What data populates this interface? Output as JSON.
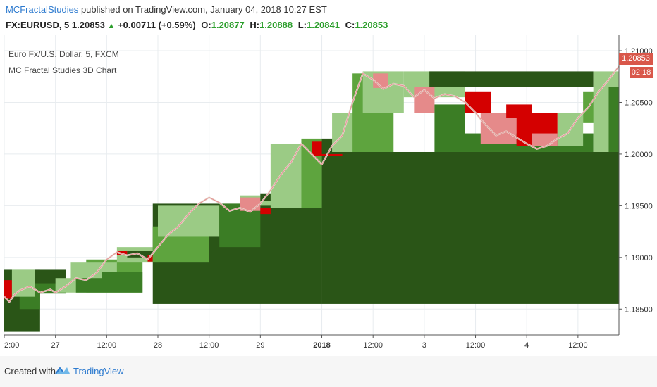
{
  "header": {
    "author": "MCFractalStudies",
    "published": "published on TradingView.com, January 04, 2018 10:27 EST"
  },
  "ohlc": {
    "symbol": "FX:EURUSD, 5",
    "last": "1.20853",
    "change": "+0.00711 (+0.59%)",
    "o_label": "O:",
    "o": "1.20877",
    "h_label": "H:",
    "h": "1.20888",
    "l_label": "L:",
    "l": "1.20841",
    "c_label": "C:",
    "c": "1.20853"
  },
  "legend": {
    "line1": "Euro Fx/U.S. Dollar, 5, FXCM",
    "line2": "MC Fractal Studies 3D Chart"
  },
  "price_tags": {
    "last_price": "1.20853",
    "countdown": "02:18"
  },
  "footer": {
    "created_with": "Created with",
    "brand": "TradingView"
  },
  "colors": {
    "dark_green": "#2a5517",
    "mid_green": "#3b7d25",
    "green": "#5ea43e",
    "light_green": "#9bcb85",
    "red": "#d40000",
    "pink": "#e58a8a",
    "price_tag": "#d9574a",
    "grid": "#e8ecef"
  },
  "chart_data": {
    "type": "line",
    "title": "MC Fractal Studies 3D Chart",
    "ylim": [
      1.1825,
      1.2115
    ],
    "y_ticks": [
      "1.18500",
      "1.19000",
      "1.19500",
      "1.20000",
      "1.20500",
      "1.21000"
    ],
    "x_ticks": [
      "2:00",
      "27",
      "12:00",
      "28",
      "12:00",
      "29",
      "2018",
      "12:00",
      "3",
      "12:00",
      "4",
      "12:00"
    ],
    "x_tick_positions": [
      0,
      1,
      2,
      3,
      4,
      5,
      6.2,
      7.2,
      8.2,
      9.2,
      10.2,
      11.2
    ],
    "series": [
      {
        "name": "EURUSD",
        "x": [
          0,
          0.1,
          0.2,
          0.3,
          0.5,
          0.7,
          0.9,
          1.0,
          1.2,
          1.4,
          1.6,
          1.8,
          2.0,
          2.2,
          2.4,
          2.6,
          2.8,
          3.0,
          3.2,
          3.4,
          3.6,
          3.8,
          4.0,
          4.2,
          4.4,
          4.6,
          4.8,
          5.0,
          5.2,
          5.4,
          5.6,
          5.8,
          6.0,
          6.2,
          6.4,
          6.6,
          6.8,
          7.0,
          7.2,
          7.4,
          7.6,
          7.8,
          8.0,
          8.2,
          8.4,
          8.6,
          8.8,
          9.0,
          9.2,
          9.4,
          9.6,
          9.8,
          10.0,
          10.2,
          10.4,
          10.6,
          10.8,
          11.0,
          11.2,
          11.4,
          11.6,
          11.8,
          12.0
        ],
        "values": [
          1.1862,
          1.1857,
          1.1864,
          1.1868,
          1.1872,
          1.1866,
          1.1869,
          1.1866,
          1.1872,
          1.188,
          1.1878,
          1.1885,
          1.1898,
          1.1905,
          1.1902,
          1.1904,
          1.1898,
          1.191,
          1.1922,
          1.193,
          1.1942,
          1.1952,
          1.1958,
          1.1953,
          1.1945,
          1.1948,
          1.1944,
          1.1952,
          1.1965,
          1.198,
          1.1992,
          1.201,
          1.2,
          1.199,
          1.2008,
          1.2018,
          1.205,
          1.2078,
          1.2072,
          1.2063,
          1.2068,
          1.2066,
          1.2055,
          1.2062,
          1.2054,
          1.2058,
          1.2056,
          1.205,
          1.204,
          1.2028,
          1.2018,
          1.2022,
          1.2016,
          1.201,
          1.2005,
          1.2008,
          1.2015,
          1.202,
          1.2035,
          1.2045,
          1.206,
          1.2072,
          1.2085
        ]
      }
    ],
    "blocks": [
      {
        "x0": 0.0,
        "x1": 0.7,
        "top": 1.1888,
        "bottom": 1.1828,
        "shade": "dark_green"
      },
      {
        "x0": 0.3,
        "x1": 0.7,
        "top": 1.1885,
        "bottom": 1.185,
        "shade": "mid_green"
      },
      {
        "x0": 0.0,
        "x1": 0.15,
        "top": 1.1878,
        "bottom": 1.186,
        "shade": "red"
      },
      {
        "x0": 0.15,
        "x1": 0.6,
        "top": 1.1888,
        "bottom": 1.1862,
        "shade": "light_green"
      },
      {
        "x0": 0.6,
        "x1": 1.2,
        "top": 1.1888,
        "bottom": 1.187,
        "shade": "dark_green"
      },
      {
        "x0": 0.6,
        "x1": 1.2,
        "top": 1.1875,
        "bottom": 1.1865,
        "shade": "mid_green"
      },
      {
        "x0": 1.0,
        "x1": 1.6,
        "top": 1.188,
        "bottom": 1.1866,
        "shade": "light_green"
      },
      {
        "x0": 1.6,
        "x1": 2.7,
        "top": 1.1898,
        "bottom": 1.1866,
        "shade": "green"
      },
      {
        "x0": 1.3,
        "x1": 2.2,
        "top": 1.1895,
        "bottom": 1.1875,
        "shade": "light_green"
      },
      {
        "x0": 2.2,
        "x1": 2.9,
        "top": 1.191,
        "bottom": 1.1895,
        "shade": "light_green"
      },
      {
        "x0": 1.4,
        "x1": 1.9,
        "top": 1.188,
        "bottom": 1.1866,
        "shade": "mid_green"
      },
      {
        "x0": 1.9,
        "x1": 2.7,
        "top": 1.1886,
        "bottom": 1.1866,
        "shade": "mid_green"
      },
      {
        "x0": 2.2,
        "x1": 2.4,
        "top": 1.1906,
        "bottom": 1.1902,
        "shade": "red"
      },
      {
        "x0": 2.4,
        "x1": 2.9,
        "top": 1.1906,
        "bottom": 1.19,
        "shade": "dark_green"
      },
      {
        "x0": 2.8,
        "x1": 2.9,
        "top": 1.1902,
        "bottom": 1.1896,
        "shade": "red"
      },
      {
        "x0": 2.9,
        "x1": 6.2,
        "top": 1.1952,
        "bottom": 1.1855,
        "shade": "dark_green"
      },
      {
        "x0": 6.2,
        "x1": 12.0,
        "top": 1.2002,
        "bottom": 1.1855,
        "shade": "dark_green"
      },
      {
        "x0": 2.9,
        "x1": 4.0,
        "top": 1.193,
        "bottom": 1.1895,
        "shade": "green"
      },
      {
        "x0": 3.0,
        "x1": 4.2,
        "top": 1.195,
        "bottom": 1.192,
        "shade": "light_green"
      },
      {
        "x0": 4.2,
        "x1": 5.0,
        "top": 1.1952,
        "bottom": 1.191,
        "shade": "mid_green"
      },
      {
        "x0": 4.6,
        "x1": 5.5,
        "top": 1.196,
        "bottom": 1.195,
        "shade": "light_green"
      },
      {
        "x0": 4.6,
        "x1": 5.0,
        "top": 1.1958,
        "bottom": 1.1945,
        "shade": "pink"
      },
      {
        "x0": 5.0,
        "x1": 5.2,
        "top": 1.1948,
        "bottom": 1.1942,
        "shade": "red"
      },
      {
        "x0": 5.0,
        "x1": 5.8,
        "top": 1.1962,
        "bottom": 1.1955,
        "shade": "dark_green"
      },
      {
        "x0": 5.2,
        "x1": 6.0,
        "top": 1.201,
        "bottom": 1.1948,
        "shade": "light_green"
      },
      {
        "x0": 5.8,
        "x1": 6.2,
        "top": 1.2015,
        "bottom": 1.1948,
        "shade": "green"
      },
      {
        "x0": 6.0,
        "x1": 6.6,
        "top": 1.2012,
        "bottom": 1.1998,
        "shade": "red"
      },
      {
        "x0": 6.2,
        "x1": 6.8,
        "top": 1.2015,
        "bottom": 1.2,
        "shade": "dark_green"
      },
      {
        "x0": 6.4,
        "x1": 7.0,
        "top": 1.204,
        "bottom": 1.2002,
        "shade": "light_green"
      },
      {
        "x0": 6.8,
        "x1": 7.6,
        "top": 1.2078,
        "bottom": 1.2002,
        "shade": "green"
      },
      {
        "x0": 7.0,
        "x1": 7.8,
        "top": 1.208,
        "bottom": 1.204,
        "shade": "light_green"
      },
      {
        "x0": 7.2,
        "x1": 7.5,
        "top": 1.2078,
        "bottom": 1.2064,
        "shade": "pink"
      },
      {
        "x0": 7.8,
        "x1": 9.0,
        "top": 1.208,
        "bottom": 1.2055,
        "shade": "light_green"
      },
      {
        "x0": 8.3,
        "x1": 11.5,
        "top": 1.208,
        "bottom": 1.2065,
        "shade": "dark_green"
      },
      {
        "x0": 8.0,
        "x1": 8.4,
        "top": 1.2065,
        "bottom": 1.204,
        "shade": "pink"
      },
      {
        "x0": 8.4,
        "x1": 9.0,
        "top": 1.2048,
        "bottom": 1.2002,
        "shade": "mid_green"
      },
      {
        "x0": 9.0,
        "x1": 11.5,
        "top": 1.202,
        "bottom": 1.2002,
        "shade": "mid_green"
      },
      {
        "x0": 9.0,
        "x1": 9.5,
        "top": 1.206,
        "bottom": 1.204,
        "shade": "red"
      },
      {
        "x0": 9.3,
        "x1": 10.0,
        "top": 1.204,
        "bottom": 1.201,
        "shade": "pink"
      },
      {
        "x0": 9.8,
        "x1": 10.3,
        "top": 1.2048,
        "bottom": 1.2035,
        "shade": "red"
      },
      {
        "x0": 10.0,
        "x1": 10.8,
        "top": 1.204,
        "bottom": 1.2008,
        "shade": "red"
      },
      {
        "x0": 10.3,
        "x1": 10.8,
        "top": 1.202,
        "bottom": 1.2008,
        "shade": "pink"
      },
      {
        "x0": 10.8,
        "x1": 11.3,
        "top": 1.204,
        "bottom": 1.2008,
        "shade": "light_green"
      },
      {
        "x0": 11.3,
        "x1": 11.6,
        "top": 1.206,
        "bottom": 1.203,
        "shade": "green"
      },
      {
        "x0": 11.5,
        "x1": 12.0,
        "top": 1.208,
        "bottom": 1.2002,
        "shade": "light_green"
      },
      {
        "x0": 11.8,
        "x1": 12.0,
        "top": 1.2065,
        "bottom": 1.2002,
        "shade": "mid_green"
      }
    ]
  }
}
